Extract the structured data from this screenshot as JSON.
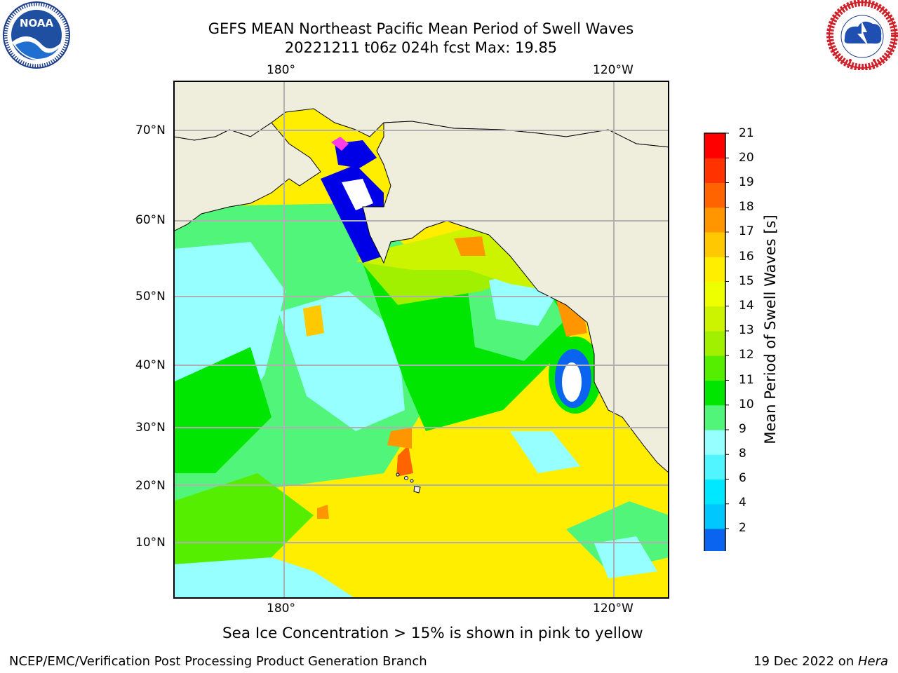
{
  "header": {
    "title_line1": "GEFS MEAN Northeast Pacific Mean Period of Swell Waves",
    "title_line2": "20221211 t06z 024h fcst   Max: 19.85"
  },
  "logos": {
    "left": {
      "name": "NOAA",
      "ring_text": "NATIONAL OCEANIC AND ATMOSPHERIC ADMINISTRATION · U.S. DEPARTMENT OF COMMERCE"
    },
    "right": {
      "name": "NATIONAL WEATHER SERVICE"
    }
  },
  "map": {
    "lon_labels_top": [
      "180°",
      "120°W"
    ],
    "lon_labels_bottom": [
      "180°",
      "120°W"
    ],
    "lat_labels": [
      "70°N",
      "60°N",
      "50°N",
      "40°N",
      "30°N",
      "20°N",
      "10°N"
    ],
    "colors": {
      "land": "#efeedd",
      "grid": "#b0b0b0",
      "coast": "#000000"
    }
  },
  "colorbar": {
    "label": "Mean Period of Swell Waves [s]",
    "ticks": [
      "21",
      "20",
      "19",
      "18",
      "17",
      "16",
      "15",
      "14",
      "13",
      "12",
      "11",
      "10",
      "9",
      "8",
      "6",
      "4",
      "2"
    ],
    "colors_bottom_to_top": [
      "#0a64f0",
      "#00c8ff",
      "#00e8ff",
      "#50f5ff",
      "#96ffff",
      "#50f57a",
      "#00e600",
      "#55ee00",
      "#a0f000",
      "#ccf400",
      "#eeff00",
      "#ffee00",
      "#ffc800",
      "#ff9600",
      "#ff6400",
      "#ff3200",
      "#ff0000"
    ],
    "extend_color": "#0000e6"
  },
  "note": "Sea Ice Concentration > 15% is shown in pink to yellow",
  "footer": {
    "left": "NCEP/EMC/Verification Post Processing Product Generation Branch",
    "right_date": "19 Dec 2022 on ",
    "right_host": "Hera"
  }
}
